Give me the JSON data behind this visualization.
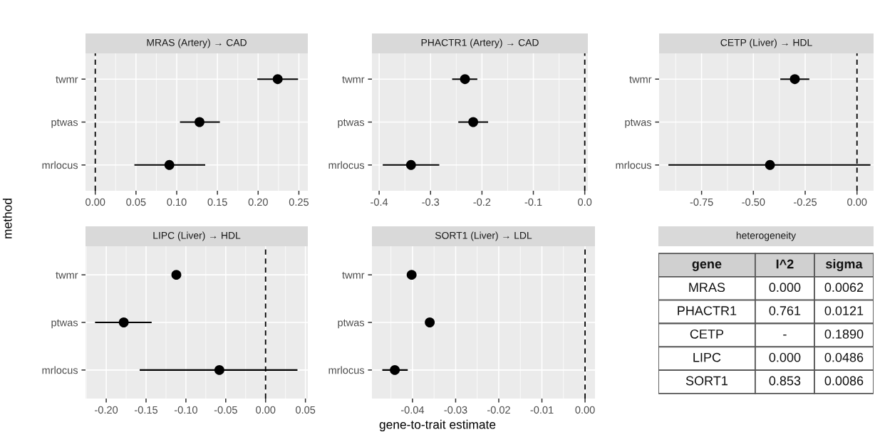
{
  "chart_data": [
    {
      "type": "scatter",
      "orientation": "horizontal",
      "title": "MRAS (Artery) → CAD",
      "ylabel": "method",
      "categories": [
        "twmr",
        "ptwas",
        "mrlocus"
      ],
      "marker": "circle",
      "grid": true,
      "series": [
        {
          "color": "#000000",
          "values": [
            0.224,
            0.128,
            0.091
          ],
          "errors": [
            [
              0.199,
              0.249
            ],
            [
              0.104,
              0.153
            ],
            [
              0.048,
              0.135
            ]
          ]
        }
      ],
      "xlim": [
        -0.012,
        0.261
      ],
      "xticks": [
        {
          "value": 0.0,
          "label": "0.00"
        },
        {
          "value": 0.05,
          "label": "0.05"
        },
        {
          "value": 0.1,
          "label": "0.10"
        },
        {
          "value": 0.15,
          "label": "0.15"
        },
        {
          "value": 0.2,
          "label": "0.20"
        },
        {
          "value": 0.25,
          "label": "0.25"
        }
      ],
      "ref_lines": [
        {
          "axis": "x",
          "value": 0,
          "color": "#000000",
          "line_style": "dashed"
        }
      ]
    },
    {
      "type": "scatter",
      "orientation": "horizontal",
      "title": "PHACTR1 (Artery) → CAD",
      "categories": [
        "twmr",
        "ptwas",
        "mrlocus"
      ],
      "marker": "circle",
      "grid": true,
      "series": [
        {
          "color": "#000000",
          "values": [
            -0.233,
            -0.217,
            -0.338
          ],
          "errors": [
            [
              -0.258,
              -0.209
            ],
            [
              -0.246,
              -0.188
            ],
            [
              -0.393,
              -0.283
            ]
          ]
        }
      ],
      "xlim": [
        -0.414,
        0.006
      ],
      "xticks": [
        {
          "value": -0.4,
          "label": "-0.4"
        },
        {
          "value": -0.3,
          "label": "-0.3"
        },
        {
          "value": -0.2,
          "label": "-0.2"
        },
        {
          "value": -0.1,
          "label": "-0.1"
        },
        {
          "value": 0.0,
          "label": "0.0"
        }
      ],
      "ref_lines": [
        {
          "axis": "x",
          "value": 0,
          "color": "#000000",
          "line_style": "dashed"
        }
      ]
    },
    {
      "type": "scatter",
      "orientation": "horizontal",
      "title": "CETP (Liver) → HDL",
      "categories": [
        "twmr",
        "ptwas",
        "mrlocus"
      ],
      "marker": "circle",
      "grid": true,
      "series": [
        {
          "color": "#000000",
          "values": [
            -0.3,
            null,
            -0.42
          ],
          "errors": [
            [
              -0.37,
              -0.23
            ],
            null,
            [
              -0.91,
              0.065
            ]
          ]
        }
      ],
      "xlim": [
        -0.955,
        0.08
      ],
      "xticks": [
        {
          "value": -0.75,
          "label": "-0.75"
        },
        {
          "value": -0.5,
          "label": "-0.50"
        },
        {
          "value": -0.25,
          "label": "-0.25"
        },
        {
          "value": 0.0,
          "label": "0.00"
        }
      ],
      "ref_lines": [
        {
          "axis": "x",
          "value": 0,
          "color": "#000000",
          "line_style": "dashed"
        }
      ]
    },
    {
      "type": "scatter",
      "orientation": "horizontal",
      "title": "LIPC (Liver) → HDL",
      "categories": [
        "twmr",
        "ptwas",
        "mrlocus"
      ],
      "marker": "circle",
      "grid": true,
      "series": [
        {
          "color": "#000000",
          "values": [
            -0.112,
            -0.178,
            -0.058
          ],
          "errors": [
            null,
            [
              -0.214,
              -0.143
            ],
            [
              -0.158,
              0.04
            ]
          ]
        }
      ],
      "xlim": [
        -0.226,
        0.053
      ],
      "xticks": [
        {
          "value": -0.2,
          "label": "-0.20"
        },
        {
          "value": -0.15,
          "label": "-0.15"
        },
        {
          "value": -0.1,
          "label": "-0.10"
        },
        {
          "value": -0.05,
          "label": "-0.05"
        },
        {
          "value": 0.0,
          "label": "0.00"
        },
        {
          "value": 0.05,
          "label": "0.05"
        }
      ],
      "ref_lines": [
        {
          "axis": "x",
          "value": 0,
          "color": "#000000",
          "line_style": "dashed"
        }
      ]
    },
    {
      "type": "scatter",
      "orientation": "horizontal",
      "title": "SORT1 (Liver) → LDL",
      "xlabel": "gene-to-trait estimate",
      "categories": [
        "twmr",
        "ptwas",
        "mrlocus"
      ],
      "marker": "circle",
      "grid": true,
      "series": [
        {
          "color": "#000000",
          "values": [
            -0.0402,
            -0.036,
            -0.0441
          ],
          "errors": [
            null,
            null,
            [
              -0.047,
              -0.0411
            ]
          ]
        }
      ],
      "xlim": [
        -0.0494,
        0.0023
      ],
      "xticks": [
        {
          "value": -0.04,
          "label": "-0.04"
        },
        {
          "value": -0.03,
          "label": "-0.03"
        },
        {
          "value": -0.02,
          "label": "-0.02"
        },
        {
          "value": -0.01,
          "label": "-0.01"
        },
        {
          "value": 0.0,
          "label": "0.00"
        }
      ],
      "ref_lines": [
        {
          "axis": "x",
          "value": 0,
          "color": "#000000",
          "line_style": "dashed"
        }
      ]
    },
    {
      "type": "other",
      "title": "heterogeneity",
      "categories": [
        "gene",
        "I^2",
        "sigma"
      ],
      "cell_labels": [
        [
          "MRAS",
          "0.000",
          "0.0062"
        ],
        [
          "PHACTR1",
          "0.761",
          "0.0121"
        ],
        [
          "CETP",
          "-",
          "0.1890"
        ],
        [
          "LIPC",
          "0.000",
          "0.0486"
        ],
        [
          "SORT1",
          "0.853",
          "0.0086"
        ]
      ]
    }
  ]
}
